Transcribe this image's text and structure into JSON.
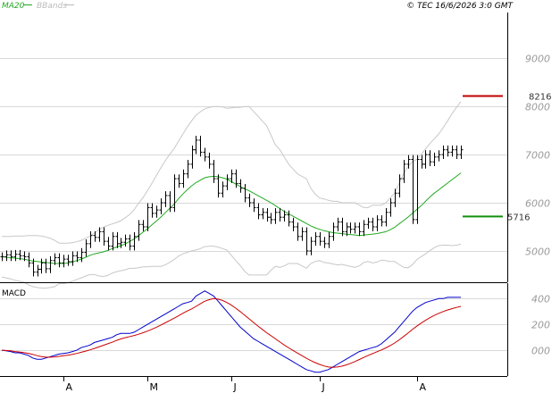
{
  "copyright": "© TEC 16/6/2026 3:0 GMT",
  "legend": {
    "ma20": "MA20",
    "bbands": "BBands"
  },
  "colors": {
    "ma20": "#22aa22",
    "bbands": "#c8c8c8",
    "price": "#000000",
    "resistance": "#c00000",
    "support": "#109010",
    "macd": "#0000cc",
    "signal": "#cc0000",
    "grid": "#d9d9d9",
    "axis_text": "#999999"
  },
  "chart_data": [
    {
      "type": "line",
      "title": "",
      "panel": "price",
      "ylim": [
        4350,
        9950
      ],
      "grid": true,
      "y_ticks": [
        5000,
        6000,
        7000,
        8000,
        9000
      ],
      "y_tick_labels": [
        "5000",
        "6000",
        "7000",
        "8000",
        "9000"
      ],
      "x_ticks": [
        {
          "label": "A",
          "index": 14
        },
        {
          "label": "M",
          "index": 33
        },
        {
          "label": "J",
          "index": 52
        },
        {
          "label": "J",
          "index": 72
        },
        {
          "label": "A",
          "index": 94
        }
      ],
      "resistance_level": {
        "value": 8216,
        "label": "8216"
      },
      "support_level": {
        "value": 5716,
        "label": "5716"
      },
      "close": [
        4880,
        4920,
        4880,
        4930,
        4900,
        4880,
        4750,
        4560,
        4620,
        4750,
        4630,
        4800,
        4860,
        4750,
        4830,
        4780,
        4900,
        4860,
        4970,
        5150,
        5320,
        5280,
        5400,
        5200,
        5100,
        5300,
        5150,
        5180,
        5250,
        5100,
        5300,
        5550,
        5500,
        5900,
        5780,
        5850,
        6000,
        6150,
        5900,
        6500,
        6400,
        6600,
        6800,
        7100,
        7300,
        7050,
        6950,
        6800,
        6500,
        6200,
        6350,
        6500,
        6600,
        6400,
        6300,
        6100,
        6000,
        5900,
        5750,
        5800,
        5700,
        5650,
        5800,
        5700,
        5750,
        5600,
        5500,
        5300,
        5400,
        5000,
        5200,
        5300,
        5200,
        5150,
        5300,
        5500,
        5600,
        5400,
        5500,
        5450,
        5500,
        5400,
        5550,
        5600,
        5500,
        5650,
        5600,
        5800,
        6000,
        6200,
        6500,
        6800,
        6900,
        5650,
        6900,
        6800,
        7000,
        6850,
        6950,
        7000,
        7100,
        7050,
        7100,
        7000,
        7100
      ],
      "ma20": [
        4880,
        4870,
        4860,
        4850,
        4840,
        4830,
        4810,
        4790,
        4780,
        4770,
        4760,
        4750,
        4740,
        4740,
        4740,
        4750,
        4770,
        4800,
        4830,
        4870,
        4910,
        4940,
        4960,
        4980,
        5010,
        5050,
        5080,
        5110,
        5150,
        5200,
        5250,
        5320,
        5390,
        5460,
        5540,
        5620,
        5700,
        5790,
        5880,
        5970,
        6080,
        6180,
        6270,
        6350,
        6420,
        6470,
        6520,
        6540,
        6550,
        6540,
        6520,
        6490,
        6440,
        6390,
        6340,
        6290,
        6250,
        6200,
        6150,
        6100,
        6050,
        6000,
        5940,
        5880,
        5820,
        5770,
        5720,
        5670,
        5620,
        5570,
        5520,
        5480,
        5450,
        5420,
        5400,
        5380,
        5370,
        5360,
        5350,
        5340,
        5330,
        5320,
        5330,
        5340,
        5350,
        5360,
        5380,
        5400,
        5440,
        5490,
        5560,
        5630,
        5700,
        5780,
        5860,
        5940,
        6030,
        6120,
        6200,
        6270,
        6340,
        6410,
        6480,
        6550,
        6620
      ],
      "bb_upper": [
        5300,
        5300,
        5300,
        5310,
        5310,
        5310,
        5320,
        5320,
        5320,
        5310,
        5290,
        5260,
        5220,
        5160,
        5160,
        5160,
        5170,
        5190,
        5220,
        5260,
        5310,
        5370,
        5440,
        5490,
        5530,
        5560,
        5590,
        5630,
        5690,
        5760,
        5860,
        5990,
        6110,
        6250,
        6400,
        6560,
        6720,
        6870,
        7000,
        7120,
        7270,
        7420,
        7570,
        7700,
        7820,
        7890,
        7950,
        7980,
        8000,
        8000,
        7990,
        7960,
        7970,
        7980,
        7980,
        8000,
        8000,
        7900,
        7800,
        7700,
        7600,
        7400,
        7200,
        7100,
        6950,
        6800,
        6700,
        6600,
        6550,
        6500,
        6300,
        6180,
        6100,
        6080,
        6050,
        6030,
        6030,
        6000,
        6000,
        6000,
        6000,
        5950,
        5900,
        5900,
        5950,
        5950,
        5950,
        6000,
        6100,
        6200,
        6400,
        6600,
        6750,
        6850,
        6900,
        7000,
        7120,
        7230,
        7330,
        7430,
        7560,
        7700,
        7850,
        7980,
        8100
      ],
      "bb_lower": [
        4460,
        4440,
        4420,
        4390,
        4370,
        4350,
        4300,
        4260,
        4240,
        4230,
        4230,
        4240,
        4260,
        4320,
        4320,
        4340,
        4370,
        4410,
        4440,
        4480,
        4510,
        4510,
        4480,
        4470,
        4490,
        4540,
        4570,
        4590,
        4610,
        4640,
        4640,
        4650,
        4670,
        4670,
        4680,
        4680,
        4680,
        4710,
        4760,
        4820,
        4890,
        4940,
        4970,
        5000,
        5020,
        5050,
        5090,
        5100,
        5100,
        5080,
        5050,
        5020,
        4910,
        4800,
        4700,
        4580,
        4500,
        4500,
        4500,
        4500,
        4500,
        4600,
        4680,
        4660,
        4690,
        4740,
        4740,
        4740,
        4690,
        4640,
        4740,
        4780,
        4800,
        4760,
        4750,
        4730,
        4710,
        4720,
        4700,
        4680,
        4660,
        4690,
        4760,
        4780,
        4750,
        4770,
        4810,
        4800,
        4780,
        4780,
        4720,
        4660,
        4650,
        4710,
        4820,
        4880,
        4940,
        5010,
        5070,
        5110,
        5120,
        5120,
        5110,
        5120,
        5140
      ]
    },
    {
      "type": "line",
      "title": "MACD",
      "panel": "macd",
      "ylim": [
        -200,
        520
      ],
      "y_ticks": [
        0,
        200,
        400
      ],
      "y_tick_labels": [
        "000",
        "200",
        "400"
      ],
      "grid": true,
      "series": [
        {
          "name": "",
          "role": "macd",
          "values": [
            0,
            -5,
            -10,
            -20,
            -20,
            -30,
            -40,
            -60,
            -70,
            -70,
            -60,
            -50,
            -40,
            -30,
            -25,
            -20,
            -10,
            0,
            20,
            30,
            40,
            60,
            70,
            80,
            90,
            100,
            120,
            130,
            130,
            130,
            140,
            160,
            180,
            200,
            220,
            240,
            260,
            280,
            300,
            320,
            340,
            360,
            370,
            380,
            420,
            440,
            460,
            440,
            420,
            380,
            340,
            300,
            260,
            220,
            180,
            150,
            120,
            90,
            70,
            50,
            30,
            10,
            -10,
            -30,
            -50,
            -70,
            -90,
            -110,
            -130,
            -150,
            -160,
            -170,
            -170,
            -160,
            -150,
            -130,
            -110,
            -90,
            -70,
            -50,
            -30,
            -10,
            0,
            10,
            20,
            30,
            50,
            80,
            110,
            140,
            180,
            220,
            260,
            300,
            330,
            350,
            370,
            380,
            390,
            400,
            400,
            410,
            410,
            410,
            410
          ]
        },
        {
          "name": "",
          "role": "signal",
          "values": [
            0,
            -2,
            -5,
            -10,
            -14,
            -18,
            -24,
            -32,
            -42,
            -50,
            -54,
            -54,
            -52,
            -48,
            -43,
            -38,
            -32,
            -25,
            -16,
            -7,
            3,
            14,
            26,
            38,
            50,
            62,
            76,
            88,
            98,
            106,
            114,
            124,
            136,
            148,
            162,
            178,
            194,
            212,
            230,
            248,
            266,
            286,
            304,
            320,
            340,
            360,
            380,
            392,
            400,
            396,
            386,
            370,
            350,
            326,
            300,
            272,
            244,
            216,
            188,
            162,
            136,
            112,
            88,
            64,
            40,
            18,
            -2,
            -22,
            -42,
            -62,
            -80,
            -96,
            -110,
            -122,
            -130,
            -132,
            -130,
            -124,
            -114,
            -102,
            -88,
            -72,
            -56,
            -40,
            -26,
            -12,
            2,
            18,
            36,
            56,
            80,
            106,
            132,
            160,
            186,
            210,
            232,
            252,
            270,
            286,
            300,
            312,
            322,
            332,
            340
          ]
        }
      ]
    }
  ]
}
